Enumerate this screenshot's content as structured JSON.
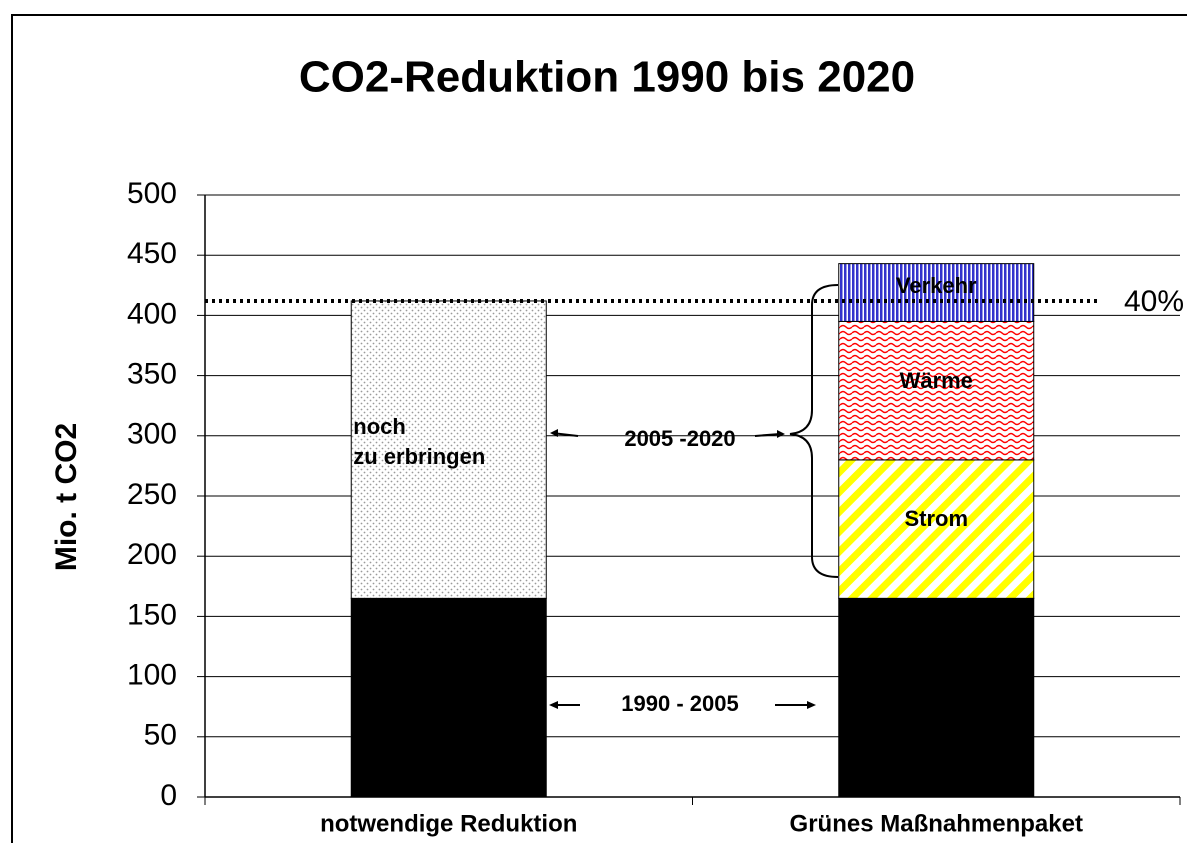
{
  "chart_data": {
    "type": "stacked_bar",
    "title": "CO2-Reduktion 1990 bis 2020",
    "y_label": "Mio. t CO2",
    "categories": [
      "notwendige Reduktion",
      "Grünes Maßnahmenpaket"
    ],
    "series": [
      {
        "color": "#000000",
        "pattern": "solid",
        "values": [
          165,
          165
        ]
      },
      {
        "name": "noch\nzu erbringen",
        "color": "#9a9a9a",
        "pattern": "dots",
        "values": [
          247,
          null
        ]
      },
      {
        "name": "Strom",
        "color": "#ffff00",
        "pattern": "diagonal",
        "values": [
          null,
          115
        ]
      },
      {
        "name": "Wärme",
        "color": "#ff0000",
        "pattern": "wave",
        "values": [
          null,
          115
        ]
      },
      {
        "name": "Verkehr",
        "color": "#3333cc",
        "pattern": "vertical",
        "values": [
          null,
          48
        ]
      }
    ],
    "reference_line": {
      "value": 412,
      "label": "40%"
    },
    "annotations": [
      "2005 -2020",
      "1990 - 2005"
    ],
    "ylim": [
      0,
      500
    ],
    "yticks": [
      0,
      50,
      100,
      150,
      200,
      250,
      300,
      350,
      400,
      450,
      500
    ],
    "grid": true
  }
}
